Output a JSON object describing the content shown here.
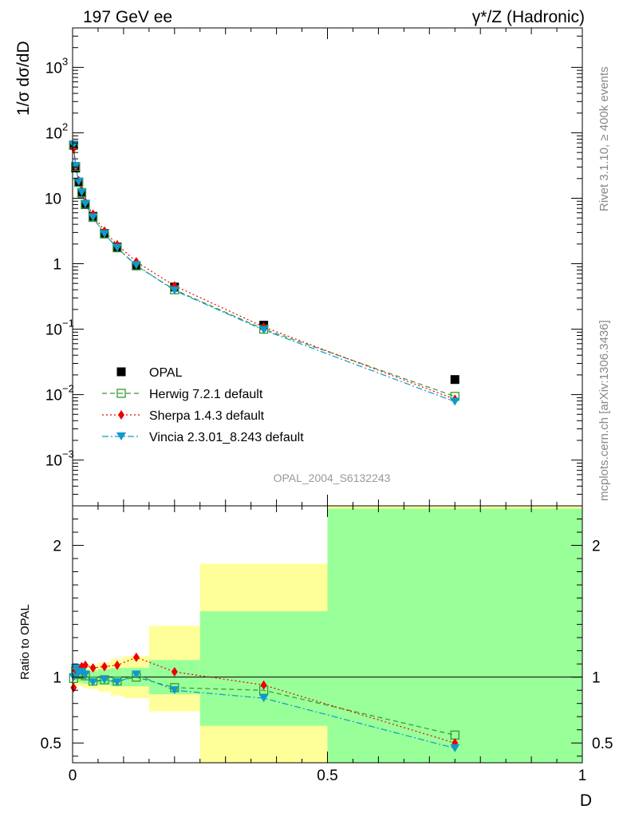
{
  "header": {
    "left_title": "197 GeV ee",
    "right_title": "γ*/Z (Hadronic)",
    "side_text_top": "Rivet 3.1.10, ≥ 400k events",
    "side_text_bottom": "mcplots.cern.ch [arXiv:1306.3436]",
    "analysis_label": "OPAL_2004_S6132243"
  },
  "main_ylabel": "1/σ dσ/dD",
  "ratio_ylabel": "Ratio to OPAL",
  "xlabel": "D",
  "colors": {
    "opal": "#000000",
    "herwig": "#339933",
    "sherpa": "#ee0000",
    "vincia": "#1199cc",
    "band_yellow": "#ffff99",
    "band_green": "#99ff99"
  },
  "chart_data": [
    {
      "type": "scatter",
      "panel": "main",
      "x_scale": "linear",
      "y_scale": "log",
      "xlim": [
        0,
        1
      ],
      "ylim": [
        0.0002,
        4000
      ],
      "y_ticks": [
        {
          "base": "10",
          "exp": "3",
          "value": 1000
        },
        {
          "base": "10",
          "exp": "2",
          "value": 100
        },
        {
          "base": "10",
          "exp": "",
          "value": 10
        },
        {
          "base": "1",
          "exp": "",
          "value": 1
        },
        {
          "base": "10",
          "exp": "−1",
          "value": 0.1
        },
        {
          "base": "10",
          "exp": "−2",
          "value": 0.01
        },
        {
          "base": "10",
          "exp": "−3",
          "value": 0.001
        }
      ],
      "legend_position": "bottom-left",
      "series": [
        {
          "name": "OPAL",
          "key": "opal",
          "marker": "square-filled",
          "x": [
            0.002,
            0.006,
            0.012,
            0.018,
            0.025,
            0.04,
            0.0625,
            0.0875,
            0.125,
            0.2,
            0.375,
            0.75
          ],
          "y": [
            65,
            29,
            17.5,
            12,
            8,
            5.3,
            2.9,
            1.8,
            0.93,
            0.44,
            0.115,
            0.017
          ]
        },
        {
          "name": "Herwig 7.2.1 default",
          "key": "herwig",
          "marker": "square-open",
          "line": "dashed",
          "x": [
            0.002,
            0.006,
            0.012,
            0.018,
            0.025,
            0.04,
            0.0625,
            0.0875,
            0.125,
            0.2,
            0.375,
            0.75
          ],
          "y": [
            64,
            30.5,
            17.5,
            12.2,
            8.1,
            5.1,
            2.85,
            1.75,
            0.93,
            0.4,
            0.1,
            0.0094
          ]
        },
        {
          "name": "Sherpa 1.4.3 default",
          "key": "sherpa",
          "marker": "diamond-filled",
          "line": "dotted",
          "x": [
            0.002,
            0.006,
            0.012,
            0.018,
            0.025,
            0.04,
            0.0625,
            0.0875,
            0.125,
            0.2,
            0.375,
            0.75
          ],
          "y": [
            58,
            30.5,
            18.5,
            13,
            8.7,
            5.7,
            3.15,
            1.95,
            1.07,
            0.46,
            0.108,
            0.0085
          ]
        },
        {
          "name": "Vincia 2.3.01_8.243 default",
          "key": "vincia",
          "marker": "triangle-down-filled",
          "line": "dashdot",
          "x": [
            0.002,
            0.006,
            0.012,
            0.018,
            0.025,
            0.04,
            0.0625,
            0.0875,
            0.125,
            0.2,
            0.375,
            0.75
          ],
          "y": [
            65,
            31,
            18,
            12.4,
            8.2,
            5.1,
            2.85,
            1.75,
            0.95,
            0.39,
            0.097,
            0.0078
          ]
        }
      ]
    },
    {
      "type": "line",
      "panel": "ratio",
      "x_scale": "linear",
      "y_scale": "linear",
      "xlim": [
        0,
        1
      ],
      "ylim": [
        0.35,
        2.3
      ],
      "x_ticks": [
        {
          "label": "0",
          "value": 0
        },
        {
          "label": "0.5",
          "value": 0.5
        },
        {
          "label": "1",
          "value": 1
        }
      ],
      "y_ticks": [
        {
          "label": "0.5",
          "value": 0.5
        },
        {
          "label": "1",
          "value": 1
        },
        {
          "label": "2",
          "value": 2
        }
      ],
      "reference_line": 1,
      "bands": [
        {
          "x0": 0.0,
          "x1": 0.004,
          "y_lo": 0.95,
          "y_hi": 1.05,
          "g_lo": 0.97,
          "g_hi": 1.03
        },
        {
          "x0": 0.004,
          "x1": 0.008,
          "y_lo": 0.94,
          "y_hi": 1.06,
          "g_lo": 0.97,
          "g_hi": 1.03
        },
        {
          "x0": 0.008,
          "x1": 0.016,
          "y_lo": 0.93,
          "y_hi": 1.07,
          "g_lo": 0.96,
          "g_hi": 1.04
        },
        {
          "x0": 0.016,
          "x1": 0.02,
          "y_lo": 0.93,
          "y_hi": 1.07,
          "g_lo": 0.96,
          "g_hi": 1.04
        },
        {
          "x0": 0.02,
          "x1": 0.03,
          "y_lo": 0.92,
          "y_hi": 1.08,
          "g_lo": 0.95,
          "g_hi": 1.05
        },
        {
          "x0": 0.03,
          "x1": 0.05,
          "y_lo": 0.91,
          "y_hi": 1.09,
          "g_lo": 0.95,
          "g_hi": 1.05
        },
        {
          "x0": 0.05,
          "x1": 0.075,
          "y_lo": 0.89,
          "y_hi": 1.11,
          "g_lo": 0.94,
          "g_hi": 1.06
        },
        {
          "x0": 0.075,
          "x1": 0.1,
          "y_lo": 0.86,
          "y_hi": 1.14,
          "g_lo": 0.93,
          "g_hi": 1.07
        },
        {
          "x0": 0.1,
          "x1": 0.15,
          "y_lo": 0.84,
          "y_hi": 1.16,
          "g_lo": 0.93,
          "g_hi": 1.07
        },
        {
          "x0": 0.15,
          "x1": 0.25,
          "y_lo": 0.74,
          "y_hi": 1.39,
          "g_lo": 0.87,
          "g_hi": 1.13
        },
        {
          "x0": 0.25,
          "x1": 0.5,
          "y_lo": 0.35,
          "y_hi": 1.86,
          "g_lo": 0.63,
          "g_hi": 1.5
        },
        {
          "x0": 0.5,
          "x1": 1.0,
          "y_lo": 0.35,
          "y_hi": 2.3,
          "g_lo": 0.35,
          "g_hi": 2.28
        }
      ],
      "series": [
        {
          "name": "Herwig 7.2.1 default",
          "key": "herwig",
          "marker": "square-open",
          "line": "dashed",
          "x": [
            0.002,
            0.006,
            0.012,
            0.018,
            0.025,
            0.04,
            0.0625,
            0.0875,
            0.125,
            0.2,
            0.375,
            0.75
          ],
          "y": [
            0.99,
            1.05,
            1.02,
            1.02,
            1.01,
            0.97,
            0.98,
            0.97,
            1.0,
            0.92,
            0.9,
            0.56
          ]
        },
        {
          "name": "Sherpa 1.4.3 default",
          "key": "sherpa",
          "marker": "diamond-filled",
          "line": "dotted",
          "x": [
            0.002,
            0.006,
            0.012,
            0.018,
            0.025,
            0.04,
            0.0625,
            0.0875,
            0.125,
            0.2,
            0.375,
            0.75
          ],
          "y": [
            0.92,
            1.05,
            1.06,
            1.08,
            1.09,
            1.07,
            1.08,
            1.09,
            1.15,
            1.04,
            0.94,
            0.5
          ]
        },
        {
          "name": "Vincia 2.3.01_8.243 default",
          "key": "vincia",
          "marker": "triangle-down-filled",
          "line": "dashdot",
          "x": [
            0.002,
            0.006,
            0.012,
            0.018,
            0.025,
            0.04,
            0.0625,
            0.0875,
            0.125,
            0.2,
            0.375,
            0.75
          ],
          "y": [
            1.0,
            1.07,
            1.03,
            1.04,
            1.02,
            0.96,
            0.98,
            0.96,
            1.02,
            0.9,
            0.84,
            0.46
          ]
        }
      ]
    }
  ]
}
